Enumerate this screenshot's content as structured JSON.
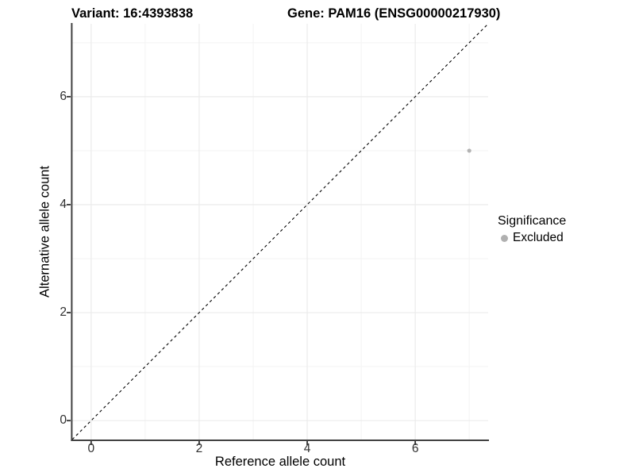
{
  "title": {
    "variant": "Variant: 16:4393838",
    "gene": "Gene: PAM16 (ENSG00000217930)"
  },
  "axes": {
    "x_label": "Reference allele count",
    "y_label": "Alternative allele count"
  },
  "legend": {
    "title": "Significance",
    "items": [
      {
        "label": "Excluded",
        "color": "#b0b0b0"
      }
    ]
  },
  "colors": {
    "background": "#ffffff",
    "grid_major": "#ebebeb",
    "grid_minor": "#f3f3f3",
    "axis_line": "#404040",
    "tick_mark": "#333333",
    "reference_line": "#000000",
    "point": "#b3b3b3"
  },
  "chart_data": {
    "type": "scatter",
    "title": "Variant: 16:4393838 / Gene: PAM16 (ENSG00000217930)",
    "xlabel": "Reference allele count",
    "ylabel": "Alternative allele count",
    "xlim": [
      -0.35,
      7.35
    ],
    "ylim": [
      -0.35,
      7.35
    ],
    "x_ticks": [
      0,
      2,
      4,
      6
    ],
    "y_ticks": [
      0,
      2,
      4,
      6
    ],
    "x_minor_gridlines": [
      1,
      3,
      5,
      7
    ],
    "y_minor_gridlines": [
      1,
      3,
      5,
      7
    ],
    "grid": true,
    "legend_position": "right",
    "series": [
      {
        "name": "Excluded",
        "color": "#b3b3b3",
        "points": [
          {
            "x": 7,
            "y": 5
          }
        ]
      }
    ],
    "reference_line": {
      "slope": 1,
      "intercept": 0,
      "style": "dashed"
    }
  }
}
